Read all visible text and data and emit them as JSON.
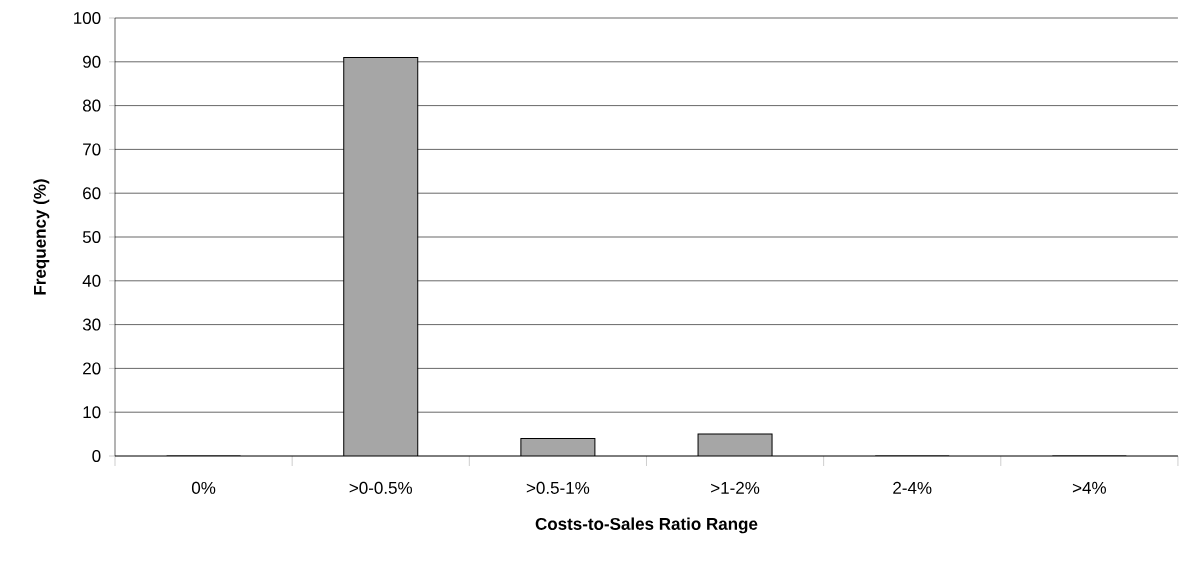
{
  "chart_data": {
    "type": "bar",
    "xlabel": "Costs-to-Sales Ratio Range",
    "ylabel": "Frequency (%)",
    "categories": [
      "0%",
      ">0-0.5%",
      ">0.5-1%",
      ">1-2%",
      "2-4%",
      ">4%"
    ],
    "values": [
      0,
      91,
      4,
      5,
      0,
      0
    ],
    "color": "#a6a6a6",
    "ylim": [
      0,
      100
    ],
    "yticks": [
      0,
      10,
      20,
      30,
      40,
      50,
      60,
      70,
      80,
      90,
      100
    ],
    "grid": "y"
  }
}
